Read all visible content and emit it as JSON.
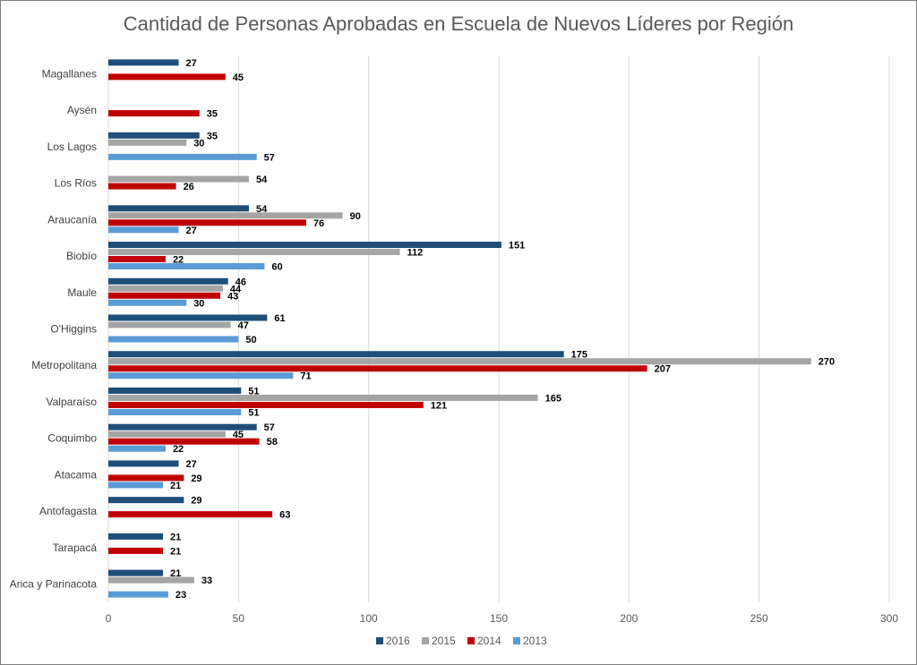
{
  "chart_data": {
    "type": "bar",
    "orientation": "horizontal",
    "title": "Cantidad de Personas Aprobadas en Escuela de Nuevos Líderes por Región",
    "xlabel": "",
    "ylabel": "",
    "xlim": [
      0,
      300
    ],
    "xticks": [
      "0",
      "50",
      "100",
      "150",
      "200",
      "250",
      "300"
    ],
    "grid": true,
    "legend_position": "bottom",
    "categories": [
      "Magallanes",
      "Aysén",
      "Los Lagos",
      "Los Ríos",
      "Araucanía",
      "Biobío",
      "Maule",
      "O'Higgins",
      "Metropolitana",
      "Valparaíso",
      "Coquimbo",
      "Atacama",
      "Antofagasta",
      "Tarapacá",
      "Arica y Parinacota"
    ],
    "series": [
      {
        "name": "2016",
        "color": "#1f4e79",
        "values": [
          27,
          null,
          35,
          null,
          54,
          151,
          46,
          61,
          175,
          51,
          57,
          27,
          29,
          21,
          21
        ]
      },
      {
        "name": "2015",
        "color": "#a5a5a5",
        "values": [
          null,
          null,
          30,
          54,
          90,
          112,
          44,
          47,
          270,
          165,
          45,
          null,
          null,
          null,
          33
        ]
      },
      {
        "name": "2014",
        "color": "#c00000",
        "values": [
          45,
          35,
          null,
          26,
          76,
          22,
          43,
          null,
          207,
          121,
          58,
          29,
          63,
          21,
          null
        ]
      },
      {
        "name": "2013",
        "color": "#5b9bd5",
        "values": [
          null,
          null,
          57,
          null,
          27,
          60,
          30,
          50,
          71,
          51,
          22,
          21,
          null,
          null,
          23
        ]
      }
    ]
  }
}
